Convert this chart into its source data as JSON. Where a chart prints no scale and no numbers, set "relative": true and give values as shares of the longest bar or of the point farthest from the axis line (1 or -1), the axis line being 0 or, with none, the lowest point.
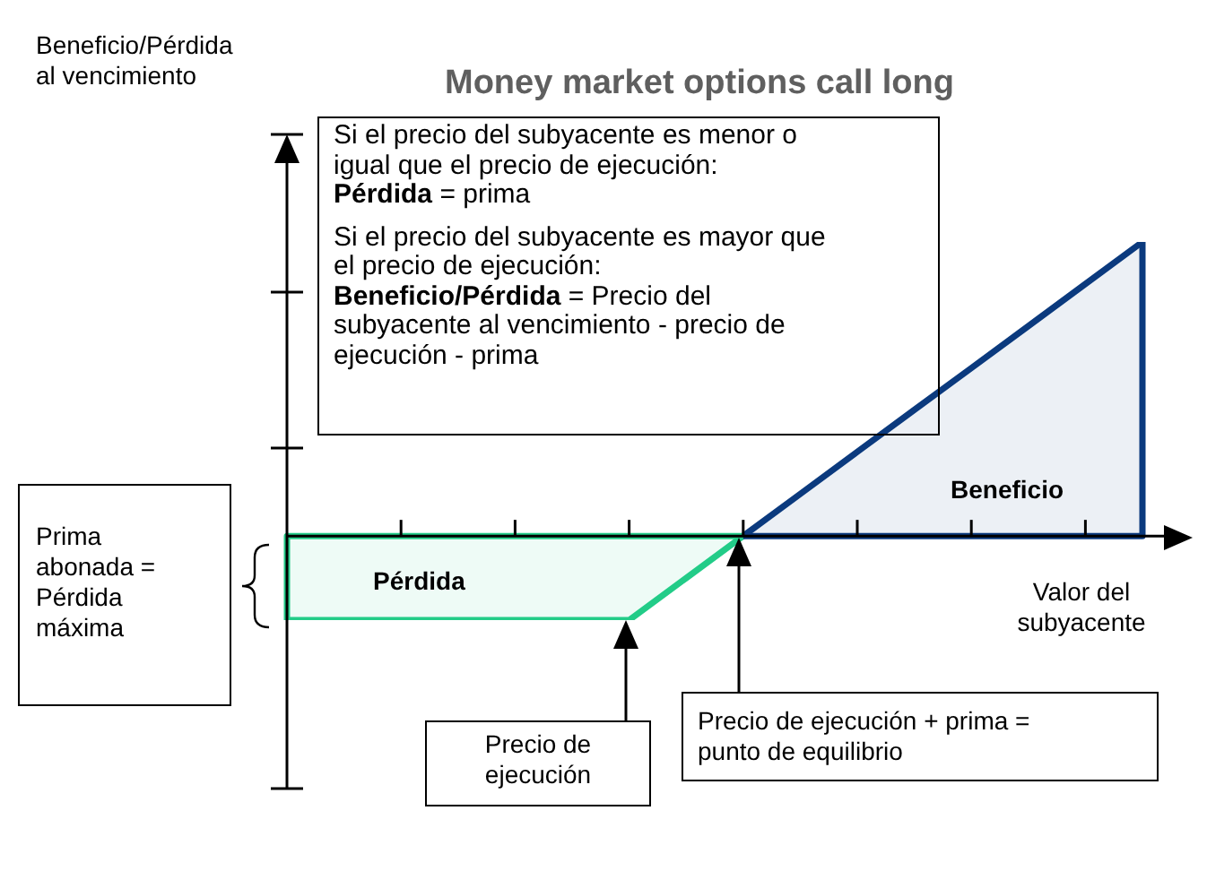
{
  "chart_data": {
    "type": "area",
    "relative": true,
    "title": "Money market options call long",
    "xlabel": "Valor del subyacente",
    "categories": [
      null,
      null,
      null,
      null,
      null,
      null,
      null,
      null,
      null,
      null,
      null,
      null,
      null,
      null,
      null,
      null
    ],
    "series": [
      {
        "color": "#22cc88",
        "values": [
          -0.286,
          -0.286,
          -0.286,
          -0.286,
          -0.286,
          -0.286,
          -0.286,
          -0.143,
          0,
          null,
          null,
          null,
          null,
          null,
          null,
          null
        ]
      },
      {
        "color": "#0b3a7e",
        "values": [
          null,
          null,
          null,
          null,
          null,
          null,
          null,
          null,
          0,
          0.143,
          0.286,
          0.429,
          0.571,
          0.714,
          0.857,
          1
        ]
      }
    ],
    "annotations": [
      "Si el precio del subyacente es menor o igual que el precio de ejecución: Pérdida = prima",
      "Si el precio del subyacente es mayor que el precio de ejecución: Beneficio/Pérdida = Precio del subyacente al vencimiento - precio de ejecución - prima",
      "Beneficio",
      "Pérdida",
      "Prima abonada = Pérdida máxima",
      "Precio de ejecución",
      "Precio de ejecución + prima = punto de equilibrio",
      "Beneficio/Pérdida al vencimiento"
    ],
    "legend": false
  }
}
